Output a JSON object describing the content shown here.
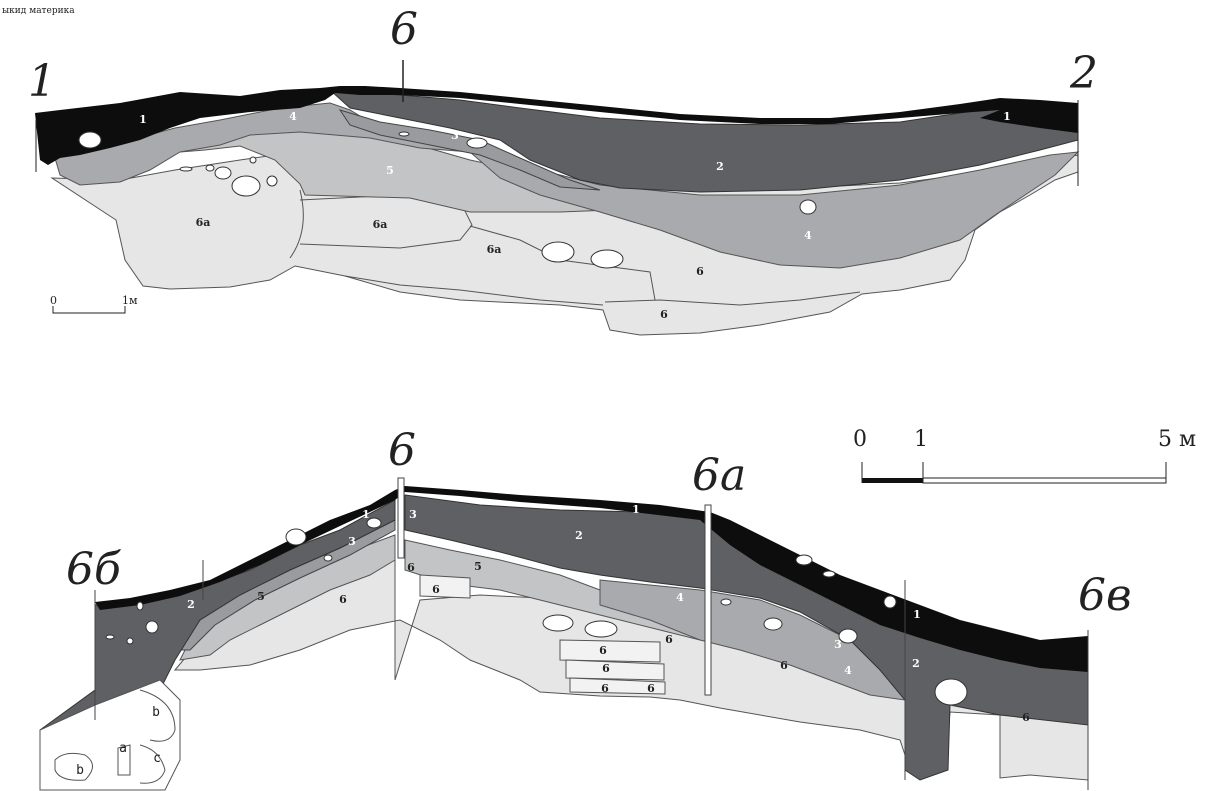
{
  "top_note": "ыкид материка",
  "section1": {
    "endpoints": {
      "left": "1",
      "mid": "6",
      "right": "2"
    },
    "layers": {
      "l1a": "1",
      "l1b": "1",
      "l2": "2",
      "l3": "3",
      "l4a": "4",
      "l4b": "4",
      "l5": "5",
      "l6a1": "6а",
      "l6a2": "6а",
      "l6a3": "6а",
      "l6_1": "6",
      "l6_2": "6"
    },
    "scale": {
      "zero": "0",
      "one": "1м"
    }
  },
  "section2": {
    "endpoints": {
      "left": "6б",
      "mid": "6",
      "mid2": "6а",
      "right": "6в"
    },
    "layers": {
      "l1a": "1",
      "l1b": "1",
      "l1c": "1",
      "l2a": "2",
      "l2b": "2",
      "l2c": "2",
      "l3a": "3",
      "l3b": "3",
      "l3c": "3",
      "l4a": "4",
      "l4b": "4",
      "l5a": "5",
      "l5b": "5",
      "l6a": "6",
      "l6b": "6",
      "l6c": "6",
      "l6d": "6",
      "l6e": "6",
      "l6f": "6",
      "l6g": "6",
      "l6h": "6",
      "l6i": "6",
      "l6j": "6"
    },
    "pit": {
      "a": "a",
      "b1": "b",
      "b2": "b",
      "c": "c"
    },
    "scale": {
      "zero": "0",
      "one": "1",
      "five": "5 м"
    }
  },
  "colors": {
    "layer1": "#0d0d0d",
    "layer2": "#5f6063",
    "layer3": "#9a9b9e",
    "layer4": "#a9aaad",
    "layer5": "#c3c4c6",
    "layer6": "#e6e6e7"
  }
}
